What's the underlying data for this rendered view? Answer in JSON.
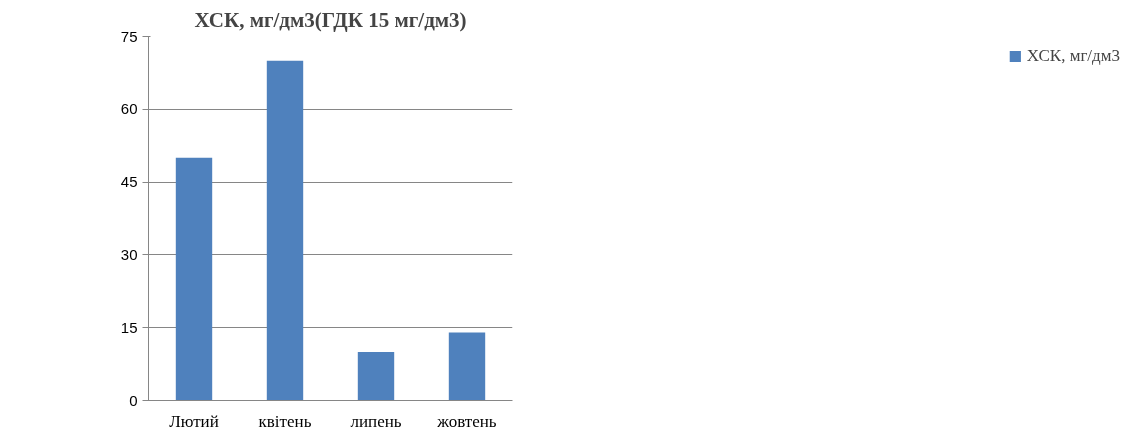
{
  "chart_data": {
    "type": "bar",
    "title": "ХСК, мг/дм3(ГДК 15 мг/дм3)",
    "categories": [
      "Лютий",
      "квітень",
      "липень",
      "жовтень"
    ],
    "series": [
      {
        "name": "ХСК, мг/дм3",
        "color": "#4f81bd",
        "values": [
          50,
          70,
          10,
          14
        ]
      }
    ],
    "ylim": [
      0,
      75
    ],
    "yticks": [
      0,
      15,
      30,
      45,
      60,
      75
    ],
    "grid": "y",
    "legend": "right"
  }
}
